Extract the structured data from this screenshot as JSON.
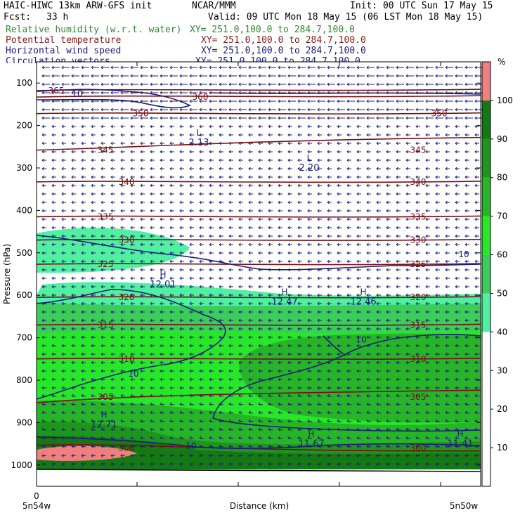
{
  "header": {
    "model": "HAIC-HIWC 13km ARW-GFS init",
    "org": "NCAR/MMM",
    "init": "Init: 00 UTC Sun 17 May 15",
    "fcst_label": "Fcst:",
    "fcst_value": "33 h",
    "valid": "Valid: 09 UTC Mon 18 May 15 (06 LST Mon 18 May 15)"
  },
  "fields": [
    {
      "label": "Relative humidity (w.r.t. water)",
      "xy": "XY= 251.0,100.0 to 284.7,100.0",
      "color": "#2e8b2e"
    },
    {
      "label": "Potential temperature",
      "xy": "XY= 251.0,100.0 to 284.7,100.0",
      "color": "#8b1a1a"
    },
    {
      "label": "Horizontal wind speed",
      "xy": "XY= 251.0,100.0 to 284.7,100.0",
      "color": "#1c1c7a"
    },
    {
      "label": "Circulation vectors",
      "xy": "XY= 251.0,100.0 to 284.7,100.0",
      "color": "#1c1c7a"
    }
  ],
  "chart_data": {
    "type": "heatmap",
    "xlabel": "Distance (km)",
    "ylabel": "Pressure (hPa)",
    "x_ticks": [
      {
        "label": "0"
      }
    ],
    "x_endpoints": [
      "5n54w",
      "5n50w"
    ],
    "y_ticks": [
      100,
      200,
      300,
      400,
      500,
      600,
      700,
      800,
      900,
      1000
    ],
    "ylim": [
      50,
      1050
    ],
    "colorbar": {
      "unit": "%",
      "levels": [
        10,
        20,
        30,
        40,
        50,
        60,
        70,
        80,
        90,
        100
      ],
      "colors": [
        "#ffffff",
        "#50f0a0",
        "#3ccc5a",
        "#28e628",
        "#28b428",
        "#1e961e",
        "#147814",
        "#f08080"
      ]
    },
    "theta_contours": [
      {
        "label": "365",
        "p": 118
      },
      {
        "label": "360",
        "p": 133
      },
      {
        "label": "350",
        "p": 172
      },
      {
        "label": "345",
        "p": 258
      },
      {
        "label": "340",
        "p": 333
      },
      {
        "label": "335",
        "p": 415
      },
      {
        "label": "330",
        "p": 470
      },
      {
        "label": "325",
        "p": 527
      },
      {
        "label": "320",
        "p": 605
      },
      {
        "label": "315",
        "p": 670
      },
      {
        "label": "310",
        "p": 750
      },
      {
        "label": "305",
        "p": 840
      },
      {
        "label": "300",
        "p": 960
      }
    ],
    "wind_labels": [
      {
        "text": "10",
        "p": 125
      },
      {
        "text": "10",
        "p": 504
      },
      {
        "text": "10",
        "p": 705
      },
      {
        "text": "10",
        "p": 785
      },
      {
        "text": "10",
        "p": 955
      }
    ],
    "extrema": [
      {
        "type": "L",
        "value": "2.13",
        "p": 240
      },
      {
        "type": "L",
        "value": "2.20",
        "p": 300
      },
      {
        "type": "H",
        "value": "12.01",
        "p": 575
      },
      {
        "type": "H",
        "value": "12.47",
        "p": 615
      },
      {
        "type": "H",
        "value": "12.46",
        "p": 615
      },
      {
        "type": "H",
        "value": "12.71",
        "p": 905
      },
      {
        "type": "H",
        "value": "11.67",
        "p": 950
      },
      {
        "type": "H",
        "value": "11.41",
        "p": 950
      }
    ]
  }
}
